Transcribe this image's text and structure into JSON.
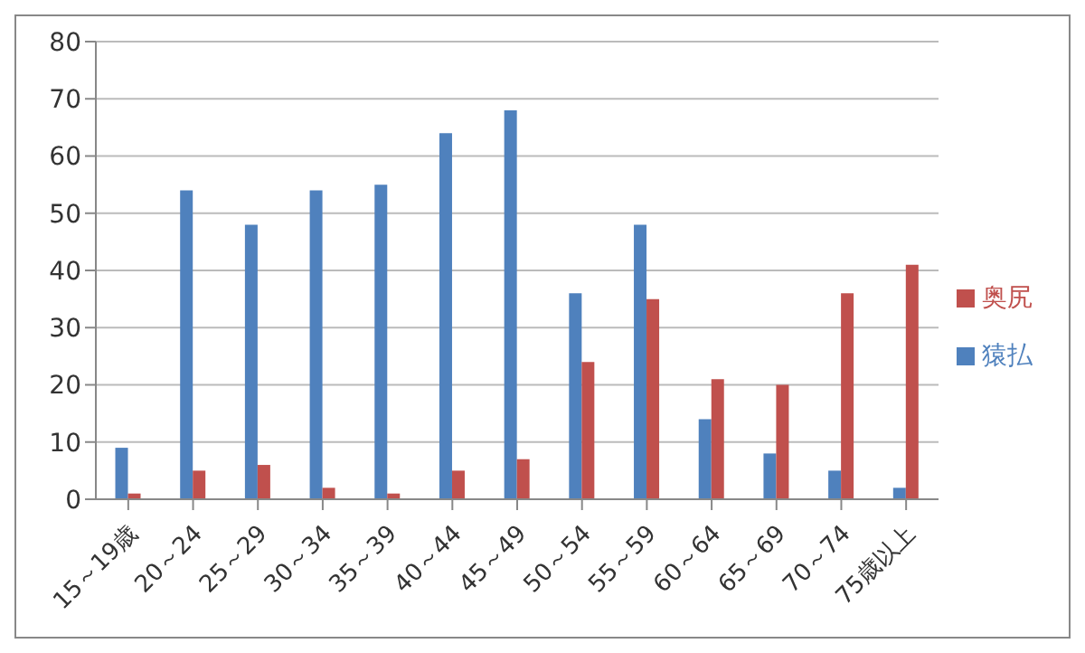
{
  "chart_data": {
    "type": "bar",
    "categories": [
      "15～19歳",
      "20～24",
      "25～29",
      "30～34",
      "35～39",
      "40～44",
      "45～49",
      "50～54",
      "55～59",
      "60～64",
      "65～69",
      "70～74",
      "75歳以上"
    ],
    "series": [
      {
        "name": "猿払",
        "color": "#4f81bd",
        "values": [
          9,
          54,
          48,
          54,
          55,
          64,
          68,
          36,
          48,
          14,
          8,
          5,
          2
        ]
      },
      {
        "name": "奥尻",
        "color": "#c0504d",
        "values": [
          1,
          5,
          6,
          2,
          1,
          5,
          7,
          24,
          35,
          21,
          20,
          36,
          41
        ]
      }
    ],
    "ylim": [
      0,
      80
    ],
    "yticks": [
      0,
      10,
      20,
      30,
      40,
      50,
      60,
      70,
      80
    ],
    "grid": "y",
    "legend": "right"
  }
}
